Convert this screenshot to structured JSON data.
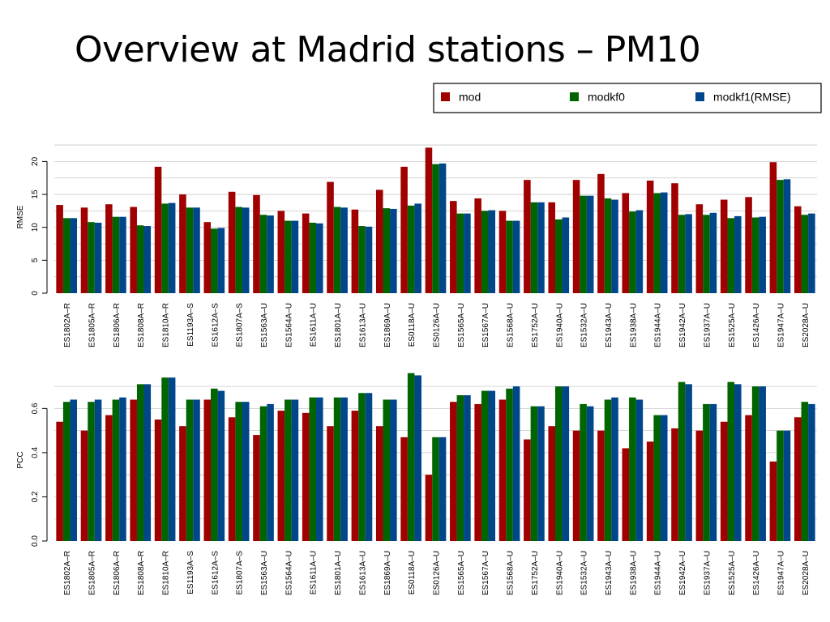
{
  "slide": {
    "title": "Overview at Madrid stations – PM10"
  },
  "legend": {
    "position": "top-right",
    "entries": [
      {
        "name": "mod",
        "color": "#a00000"
      },
      {
        "name": "modkf0",
        "color": "#006400"
      },
      {
        "name": "modkf1(RMSE)",
        "color": "#00468b"
      }
    ]
  },
  "chart_data": [
    {
      "type": "bar",
      "ylabel": "RMSE",
      "ylim": [
        0,
        23
      ],
      "yticks": [
        "0",
        "5",
        "10",
        "15",
        "20"
      ],
      "grid": true,
      "categories": [
        "ES1802A–R",
        "ES1805A–R",
        "ES1806A–R",
        "ES1808A–R",
        "ES1810A–R",
        "ES1193A–S",
        "ES1612A–S",
        "ES1807A–S",
        "ES1563A–U",
        "ES1564A–U",
        "ES1611A–U",
        "ES1801A–U",
        "ES1613A–U",
        "ES1869A–U",
        "ES0118A–U",
        "ES0126A–U",
        "ES1565A–U",
        "ES1567A–U",
        "ES1568A–U",
        "ES1752A–U",
        "ES1940A–U",
        "ES1532A–U",
        "ES1943A–U",
        "ES1938A–U",
        "ES1944A–U",
        "ES1942A–U",
        "ES1937A–U",
        "ES1525A–U",
        "ES1426A–U",
        "ES1947A–U",
        "ES2028A–U"
      ],
      "series": [
        {
          "name": "mod",
          "color": "#a00000",
          "values": [
            13.4,
            13.0,
            13.5,
            13.1,
            19.2,
            15.0,
            10.8,
            15.4,
            14.9,
            12.5,
            12.1,
            16.9,
            12.7,
            15.7,
            19.2,
            22.1,
            14.0,
            14.4,
            12.5,
            17.2,
            13.8,
            17.2,
            18.1,
            15.2,
            17.1,
            16.7,
            13.5,
            14.2,
            14.6,
            19.9,
            13.2
          ]
        },
        {
          "name": "modkf0",
          "color": "#006400",
          "values": [
            11.4,
            10.8,
            11.6,
            10.3,
            13.6,
            13.0,
            9.8,
            13.1,
            11.9,
            11.0,
            10.7,
            13.1,
            10.2,
            12.9,
            13.3,
            19.6,
            12.1,
            12.5,
            11.0,
            13.8,
            11.2,
            14.8,
            14.4,
            12.4,
            15.2,
            11.9,
            11.9,
            11.4,
            11.5,
            17.2,
            11.9
          ]
        },
        {
          "name": "modkf1(RMSE)",
          "color": "#00468b",
          "values": [
            11.4,
            10.7,
            11.6,
            10.2,
            13.7,
            13.0,
            9.9,
            13.0,
            11.8,
            11.0,
            10.6,
            13.0,
            10.1,
            12.8,
            13.6,
            19.7,
            12.1,
            12.6,
            11.0,
            13.8,
            11.5,
            14.8,
            14.2,
            12.6,
            15.3,
            12.0,
            12.2,
            11.7,
            11.6,
            17.3,
            12.1
          ]
        }
      ]
    },
    {
      "type": "bar",
      "ylabel": "PCC",
      "ylim": [
        0,
        0.77
      ],
      "yticks": [
        "0.0",
        "0.2",
        "0.4",
        "0.6"
      ],
      "grid": true,
      "categories": [
        "ES1802A–R",
        "ES1805A–R",
        "ES1806A–R",
        "ES1808A–R",
        "ES1810A–R",
        "ES1193A–S",
        "ES1612A–S",
        "ES1807A–S",
        "ES1563A–U",
        "ES1564A–U",
        "ES1611A–U",
        "ES1801A–U",
        "ES1613A–U",
        "ES1869A–U",
        "ES0118A–U",
        "ES0126A–U",
        "ES1565A–U",
        "ES1567A–U",
        "ES1568A–U",
        "ES1752A–U",
        "ES1940A–U",
        "ES1532A–U",
        "ES1943A–U",
        "ES1938A–U",
        "ES1944A–U",
        "ES1942A–U",
        "ES1937A–U",
        "ES1525A–U",
        "ES1426A–U",
        "ES1947A–U",
        "ES2028A–U"
      ],
      "series": [
        {
          "name": "mod",
          "color": "#a00000",
          "values": [
            0.54,
            0.5,
            0.57,
            0.64,
            0.55,
            0.52,
            0.64,
            0.56,
            0.48,
            0.59,
            0.58,
            0.52,
            0.59,
            0.52,
            0.47,
            0.3,
            0.63,
            0.62,
            0.64,
            0.46,
            0.52,
            0.5,
            0.5,
            0.42,
            0.45,
            0.51,
            0.5,
            0.54,
            0.57,
            0.36,
            0.56
          ]
        },
        {
          "name": "modkf0",
          "color": "#006400",
          "values": [
            0.63,
            0.63,
            0.64,
            0.71,
            0.74,
            0.64,
            0.69,
            0.63,
            0.61,
            0.64,
            0.65,
            0.65,
            0.67,
            0.64,
            0.76,
            0.47,
            0.66,
            0.68,
            0.69,
            0.61,
            0.7,
            0.62,
            0.64,
            0.65,
            0.57,
            0.72,
            0.62,
            0.72,
            0.7,
            0.5,
            0.63
          ]
        },
        {
          "name": "modkf1(RMSE)",
          "color": "#00468b",
          "values": [
            0.64,
            0.64,
            0.65,
            0.71,
            0.74,
            0.64,
            0.68,
            0.63,
            0.62,
            0.64,
            0.65,
            0.65,
            0.67,
            0.64,
            0.75,
            0.47,
            0.66,
            0.68,
            0.7,
            0.61,
            0.7,
            0.61,
            0.65,
            0.64,
            0.57,
            0.71,
            0.62,
            0.71,
            0.7,
            0.5,
            0.62
          ]
        }
      ]
    }
  ]
}
